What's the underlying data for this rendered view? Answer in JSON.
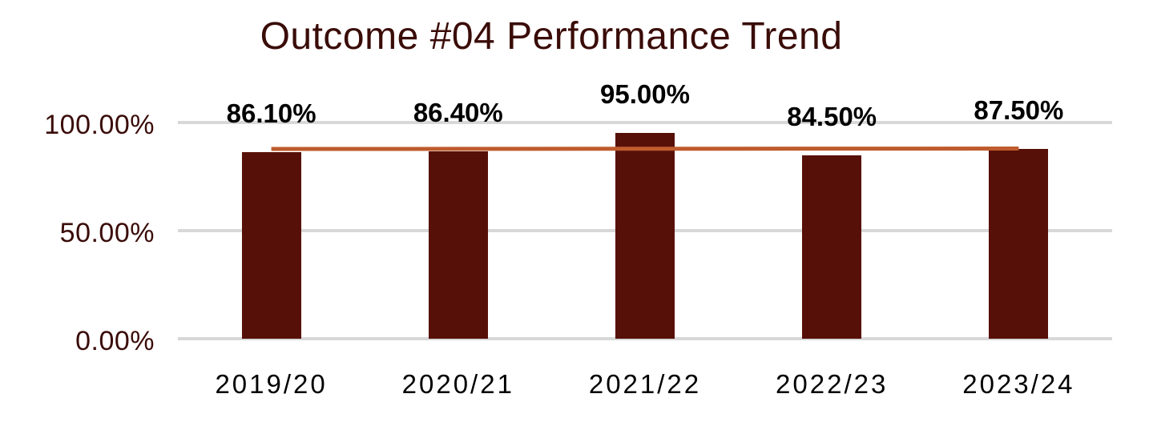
{
  "chart": {
    "background": "#ffffff",
    "title_color": "#3A0C08",
    "axis_tick_color": "#3A0C08",
    "gridline_color": "#D8D8D8",
    "data_label_color": "#000000",
    "category_label_color": "#000000"
  },
  "chart_data": {
    "type": "bar",
    "title": "Outcome #04 Performance Trend",
    "categories": [
      "2019/20",
      "2020/21",
      "2021/22",
      "2022/23",
      "2023/24"
    ],
    "series": [
      {
        "name": "performance-bars",
        "type": "bar",
        "values": [
          86.1,
          86.4,
          95.0,
          84.5,
          87.5
        ],
        "data_labels": [
          "86.10%",
          "86.40%",
          "95.00%",
          "84.50%",
          "87.50%"
        ],
        "color": "#571008"
      },
      {
        "name": "trend-line",
        "type": "line",
        "values": [
          87.6,
          87.65,
          87.7,
          87.75,
          87.8
        ],
        "color": "#BF5B2D"
      }
    ],
    "xlabel": "",
    "ylabel": "",
    "y_axis": {
      "tick_labels": [
        "0.00%",
        "50.00%",
        "100.00%"
      ],
      "tick_values": [
        0,
        50,
        100
      ],
      "range": [
        0,
        100
      ]
    },
    "grid": true,
    "legend": false
  }
}
